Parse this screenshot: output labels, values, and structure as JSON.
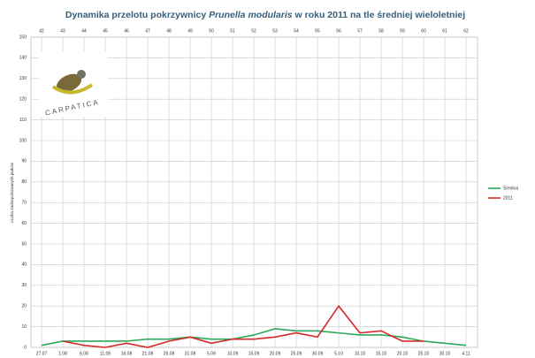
{
  "chart_data": {
    "type": "line",
    "title_parts": [
      "Dynamika przelotu pokrzywnicy ",
      "Prunella modularis",
      " w roku 2011 na tle średniej wieloletniej"
    ],
    "y_label": "Liczba zaobrączkowanych ptaków",
    "logo_text": "CARPATICA",
    "categories": [
      "27.07",
      "1.08",
      "6.08",
      "11.08",
      "16.08",
      "21.08",
      "26.08",
      "31.08",
      "5.09",
      "10.09",
      "15.09",
      "20.09",
      "25.09",
      "30.09",
      "5.10",
      "10.10",
      "15.10",
      "20.10",
      "25.10",
      "30.10",
      "4.11"
    ],
    "top_categories": [
      42,
      43,
      44,
      45,
      46,
      47,
      48,
      49,
      50,
      51,
      52,
      53,
      54,
      55,
      56,
      57,
      58,
      59,
      60,
      61,
      62
    ],
    "series": [
      {
        "name": "Średnia",
        "color": "#2ca85a",
        "values": [
          1,
          3,
          3,
          3,
          3,
          4,
          4,
          5,
          4,
          4,
          6,
          9,
          8,
          8,
          7,
          6,
          6,
          5,
          3,
          2,
          1
        ]
      },
      {
        "name": "2011",
        "color": "#d42a2a",
        "values": [
          null,
          3,
          1,
          0,
          2,
          0,
          3,
          5,
          2,
          4,
          4,
          5,
          7,
          5,
          20,
          7,
          8,
          3,
          3,
          null,
          null
        ]
      }
    ],
    "ylim": [
      0,
      150
    ],
    "yticks": [
      0,
      10,
      20,
      30,
      40,
      50,
      60,
      70,
      80,
      90,
      100,
      110,
      120,
      130,
      140,
      150
    ],
    "grid": true,
    "legend": "right"
  }
}
